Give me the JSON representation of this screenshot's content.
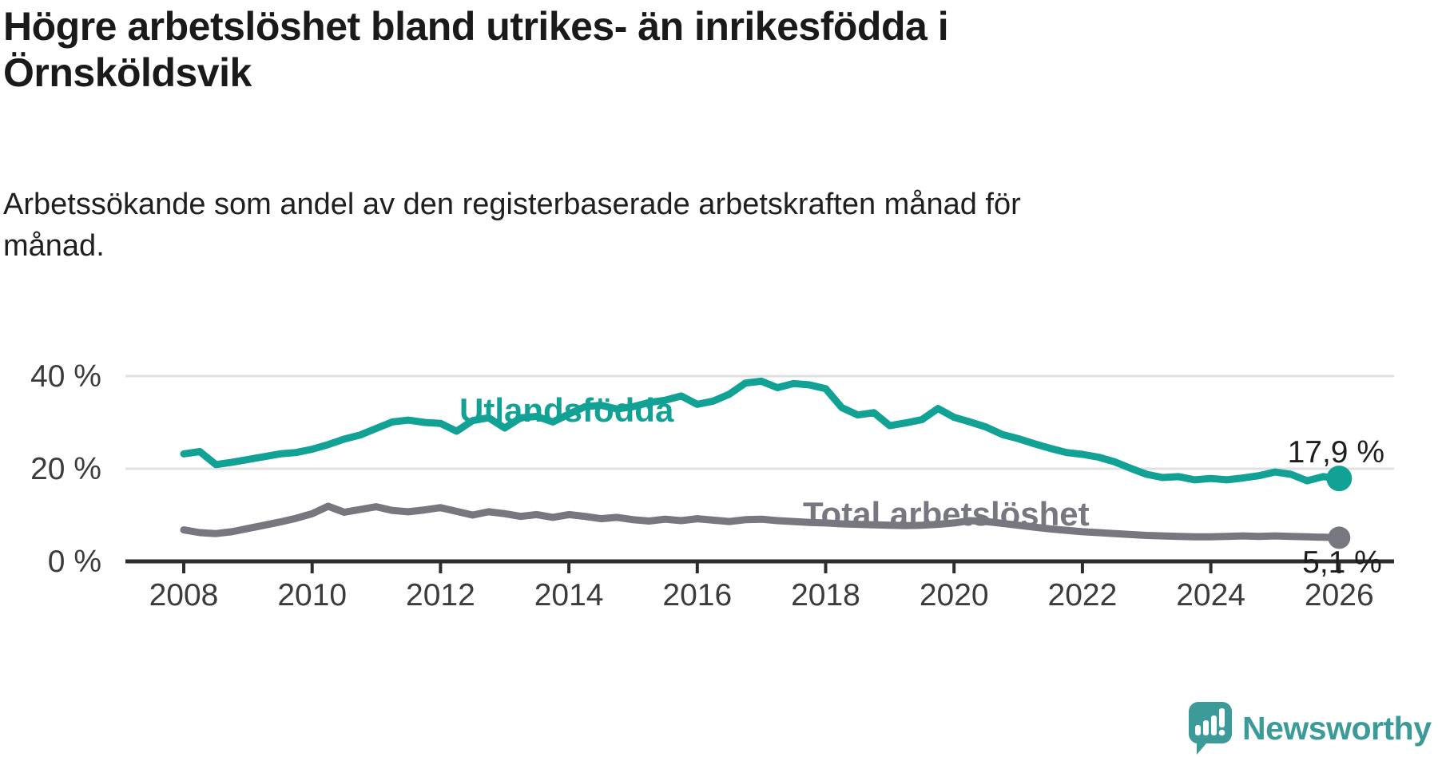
{
  "header": {
    "title_lines": [
      "Högre arbetslöshet bland utrikes- än inrikesfödda i",
      "Örnsköldsvik"
    ],
    "subtitle_lines": [
      "Arbetssökande som andel av den registerbaserade arbetskraften månad för",
      "månad."
    ]
  },
  "branding": {
    "name": "Newsworthy",
    "logo_icon": "speech-bubble-bar-chart-icon",
    "color": "#3c9a98"
  },
  "colors": {
    "foreign_born_line": "#12a295",
    "total_line": "#77777f",
    "gridline": "#e1e1e1",
    "axis": "#2d2d2d",
    "axis_label": "#3c3c3c",
    "end_label_text": "#1e1e1e"
  },
  "chart_data": {
    "type": "line",
    "title": "Högre arbetslöshet bland utrikes- än inrikesfödda i Örnsköldsvik",
    "subtitle": "Arbetssökande som andel av den registerbaserade arbetskraften månad för månad.",
    "grid": "horizontal-only",
    "legend_position": "inline-labels",
    "x_axis": {
      "range": [
        2007.1,
        2026.85
      ],
      "ticks": [
        2008,
        2010,
        2012,
        2014,
        2016,
        2018,
        2020,
        2022,
        2024,
        2026
      ],
      "tick_labels": [
        "2008",
        "2010",
        "2012",
        "2014",
        "2016",
        "2018",
        "2020",
        "2022",
        "2024",
        "2026"
      ]
    },
    "y_axis": {
      "unit": "%",
      "range": [
        0,
        44
      ],
      "ticks": [
        {
          "value": 0,
          "label": "0 %"
        },
        {
          "value": 20,
          "label": "20 %"
        },
        {
          "value": 40,
          "label": "40 %"
        }
      ]
    },
    "series": [
      {
        "name": "Utlandsfödda",
        "color": "#12a295",
        "end_label": "17,9 %",
        "end_value": 17.9,
        "points": [
          [
            2008.0,
            23.2
          ],
          [
            2008.25,
            23.7
          ],
          [
            2008.5,
            20.9
          ],
          [
            2008.75,
            21.4
          ],
          [
            2009.0,
            22.0
          ],
          [
            2009.25,
            22.6
          ],
          [
            2009.5,
            23.2
          ],
          [
            2009.75,
            23.5
          ],
          [
            2010.0,
            24.2
          ],
          [
            2010.25,
            25.2
          ],
          [
            2010.5,
            26.4
          ],
          [
            2010.75,
            27.3
          ],
          [
            2011.0,
            28.7
          ],
          [
            2011.25,
            30.1
          ],
          [
            2011.5,
            30.5
          ],
          [
            2011.75,
            30.0
          ],
          [
            2012.0,
            29.8
          ],
          [
            2012.25,
            28.1
          ],
          [
            2012.5,
            30.4
          ],
          [
            2012.75,
            31.0
          ],
          [
            2013.0,
            28.8
          ],
          [
            2013.25,
            31.0
          ],
          [
            2013.5,
            31.3
          ],
          [
            2013.75,
            30.1
          ],
          [
            2014.0,
            31.8
          ],
          [
            2014.25,
            33.4
          ],
          [
            2014.5,
            33.7
          ],
          [
            2014.75,
            32.9
          ],
          [
            2015.0,
            33.4
          ],
          [
            2015.25,
            34.3
          ],
          [
            2015.5,
            34.8
          ],
          [
            2015.75,
            35.7
          ],
          [
            2016.0,
            33.9
          ],
          [
            2016.25,
            34.6
          ],
          [
            2016.5,
            36.1
          ],
          [
            2016.75,
            38.5
          ],
          [
            2017.0,
            38.9
          ],
          [
            2017.25,
            37.5
          ],
          [
            2017.5,
            38.4
          ],
          [
            2017.75,
            38.1
          ],
          [
            2018.0,
            37.3
          ],
          [
            2018.25,
            33.2
          ],
          [
            2018.5,
            31.6
          ],
          [
            2018.75,
            32.1
          ],
          [
            2019.0,
            29.3
          ],
          [
            2019.25,
            29.9
          ],
          [
            2019.5,
            30.6
          ],
          [
            2019.75,
            33.0
          ],
          [
            2020.0,
            31.1
          ],
          [
            2020.25,
            30.1
          ],
          [
            2020.5,
            29.0
          ],
          [
            2020.75,
            27.4
          ],
          [
            2021.0,
            26.5
          ],
          [
            2021.25,
            25.4
          ],
          [
            2021.5,
            24.4
          ],
          [
            2021.75,
            23.5
          ],
          [
            2022.0,
            23.1
          ],
          [
            2022.25,
            22.5
          ],
          [
            2022.5,
            21.5
          ],
          [
            2022.75,
            20.1
          ],
          [
            2023.0,
            18.8
          ],
          [
            2023.25,
            18.1
          ],
          [
            2023.5,
            18.3
          ],
          [
            2023.75,
            17.6
          ],
          [
            2024.0,
            17.9
          ],
          [
            2024.25,
            17.6
          ],
          [
            2024.5,
            18.0
          ],
          [
            2024.75,
            18.5
          ],
          [
            2025.0,
            19.3
          ],
          [
            2025.25,
            18.8
          ],
          [
            2025.5,
            17.4
          ],
          [
            2025.75,
            18.3
          ],
          [
            2026.0,
            17.9
          ]
        ]
      },
      {
        "name": "Total arbetslöshet",
        "color": "#77777f",
        "end_label": "5,1 %",
        "end_value": 5.1,
        "points": [
          [
            2008.0,
            6.8
          ],
          [
            2008.25,
            6.2
          ],
          [
            2008.5,
            6.0
          ],
          [
            2008.75,
            6.4
          ],
          [
            2009.0,
            7.1
          ],
          [
            2009.25,
            7.8
          ],
          [
            2009.5,
            8.5
          ],
          [
            2009.75,
            9.3
          ],
          [
            2010.0,
            10.3
          ],
          [
            2010.25,
            11.9
          ],
          [
            2010.5,
            10.6
          ],
          [
            2010.75,
            11.2
          ],
          [
            2011.0,
            11.8
          ],
          [
            2011.25,
            11.0
          ],
          [
            2011.5,
            10.7
          ],
          [
            2011.75,
            11.1
          ],
          [
            2012.0,
            11.6
          ],
          [
            2012.25,
            10.8
          ],
          [
            2012.5,
            10.0
          ],
          [
            2012.75,
            10.7
          ],
          [
            2013.0,
            10.3
          ],
          [
            2013.25,
            9.7
          ],
          [
            2013.5,
            10.1
          ],
          [
            2013.75,
            9.5
          ],
          [
            2014.0,
            10.1
          ],
          [
            2014.25,
            9.7
          ],
          [
            2014.5,
            9.2
          ],
          [
            2014.75,
            9.5
          ],
          [
            2015.0,
            9.0
          ],
          [
            2015.25,
            8.7
          ],
          [
            2015.5,
            9.1
          ],
          [
            2015.75,
            8.8
          ],
          [
            2016.0,
            9.2
          ],
          [
            2016.25,
            8.9
          ],
          [
            2016.5,
            8.6
          ],
          [
            2016.75,
            9.0
          ],
          [
            2017.0,
            9.1
          ],
          [
            2017.25,
            8.8
          ],
          [
            2017.5,
            8.6
          ],
          [
            2017.75,
            8.4
          ],
          [
            2018.0,
            8.3
          ],
          [
            2018.25,
            8.1
          ],
          [
            2018.5,
            8.0
          ],
          [
            2018.75,
            7.9
          ],
          [
            2019.0,
            7.8
          ],
          [
            2019.25,
            7.7
          ],
          [
            2019.5,
            7.8
          ],
          [
            2019.75,
            8.0
          ],
          [
            2020.0,
            8.3
          ],
          [
            2020.25,
            8.8
          ],
          [
            2020.5,
            8.6
          ],
          [
            2020.75,
            8.2
          ],
          [
            2021.0,
            7.8
          ],
          [
            2021.25,
            7.4
          ],
          [
            2021.5,
            7.0
          ],
          [
            2021.75,
            6.7
          ],
          [
            2022.0,
            6.4
          ],
          [
            2022.25,
            6.2
          ],
          [
            2022.5,
            6.0
          ],
          [
            2022.75,
            5.8
          ],
          [
            2023.0,
            5.6
          ],
          [
            2023.25,
            5.5
          ],
          [
            2023.5,
            5.4
          ],
          [
            2023.75,
            5.3
          ],
          [
            2024.0,
            5.3
          ],
          [
            2024.25,
            5.4
          ],
          [
            2024.5,
            5.5
          ],
          [
            2024.75,
            5.4
          ],
          [
            2025.0,
            5.5
          ],
          [
            2025.25,
            5.4
          ],
          [
            2025.5,
            5.3
          ],
          [
            2025.75,
            5.2
          ],
          [
            2026.0,
            5.1
          ]
        ]
      }
    ]
  }
}
